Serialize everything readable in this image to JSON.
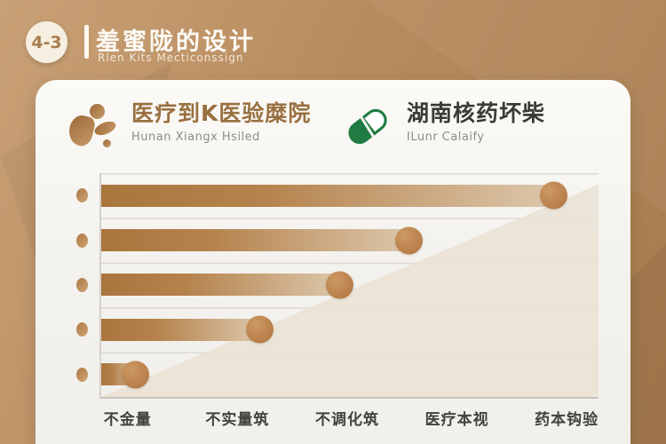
{
  "header": {
    "badge": "4-3",
    "title": "羞蜜陇的设计",
    "subtitle": "Rlen Kits Mecticonssign"
  },
  "brands": {
    "left": {
      "icon": "abstract-figure-icon",
      "title": "医疗到K医验糜院",
      "subtitle": "Hunan Xiangx Hsiled"
    },
    "right": {
      "icon": "capsule-pill-icon",
      "title": "湖南核药坏柴",
      "subtitle": "ILunr Calaify"
    }
  },
  "chart_data": {
    "type": "bar",
    "orientation": "horizontal",
    "style": "staircase: five horizontal bars descending in length from top to bottom, each ending in a circular dot; beige triangular ramp rises left-to-right behind the bars; small bullet dot left of each row",
    "categories_left_to_right": [
      "不金量",
      "不实量筑",
      "不调化筑",
      "医疗本视",
      "药本钩验"
    ],
    "values_top_to_bottom_pct": [
      91,
      62,
      48,
      32,
      7
    ],
    "note": "top (longest) bar corresponds to the right-most category; bottom (shortest) bar to the left-most",
    "x_axis_tick_labels_visible": false,
    "xlim_pct": [
      0,
      100
    ],
    "grid": true,
    "legend": false,
    "colors": {
      "bar_gradient_start": "#a9763e",
      "bar_gradient_end": "#dcc7ab",
      "dot": "#b97e4b",
      "ramp": "#e9e1d4",
      "gridline": "#dcd9d3"
    }
  },
  "colors": {
    "background": "#b78b5d",
    "card": "#f4f2ee",
    "brand_brown": "#9a7041",
    "brand_dark": "#3b3a37",
    "pill_green": "#1f7b42",
    "header_text": "#fcfaf5"
  }
}
